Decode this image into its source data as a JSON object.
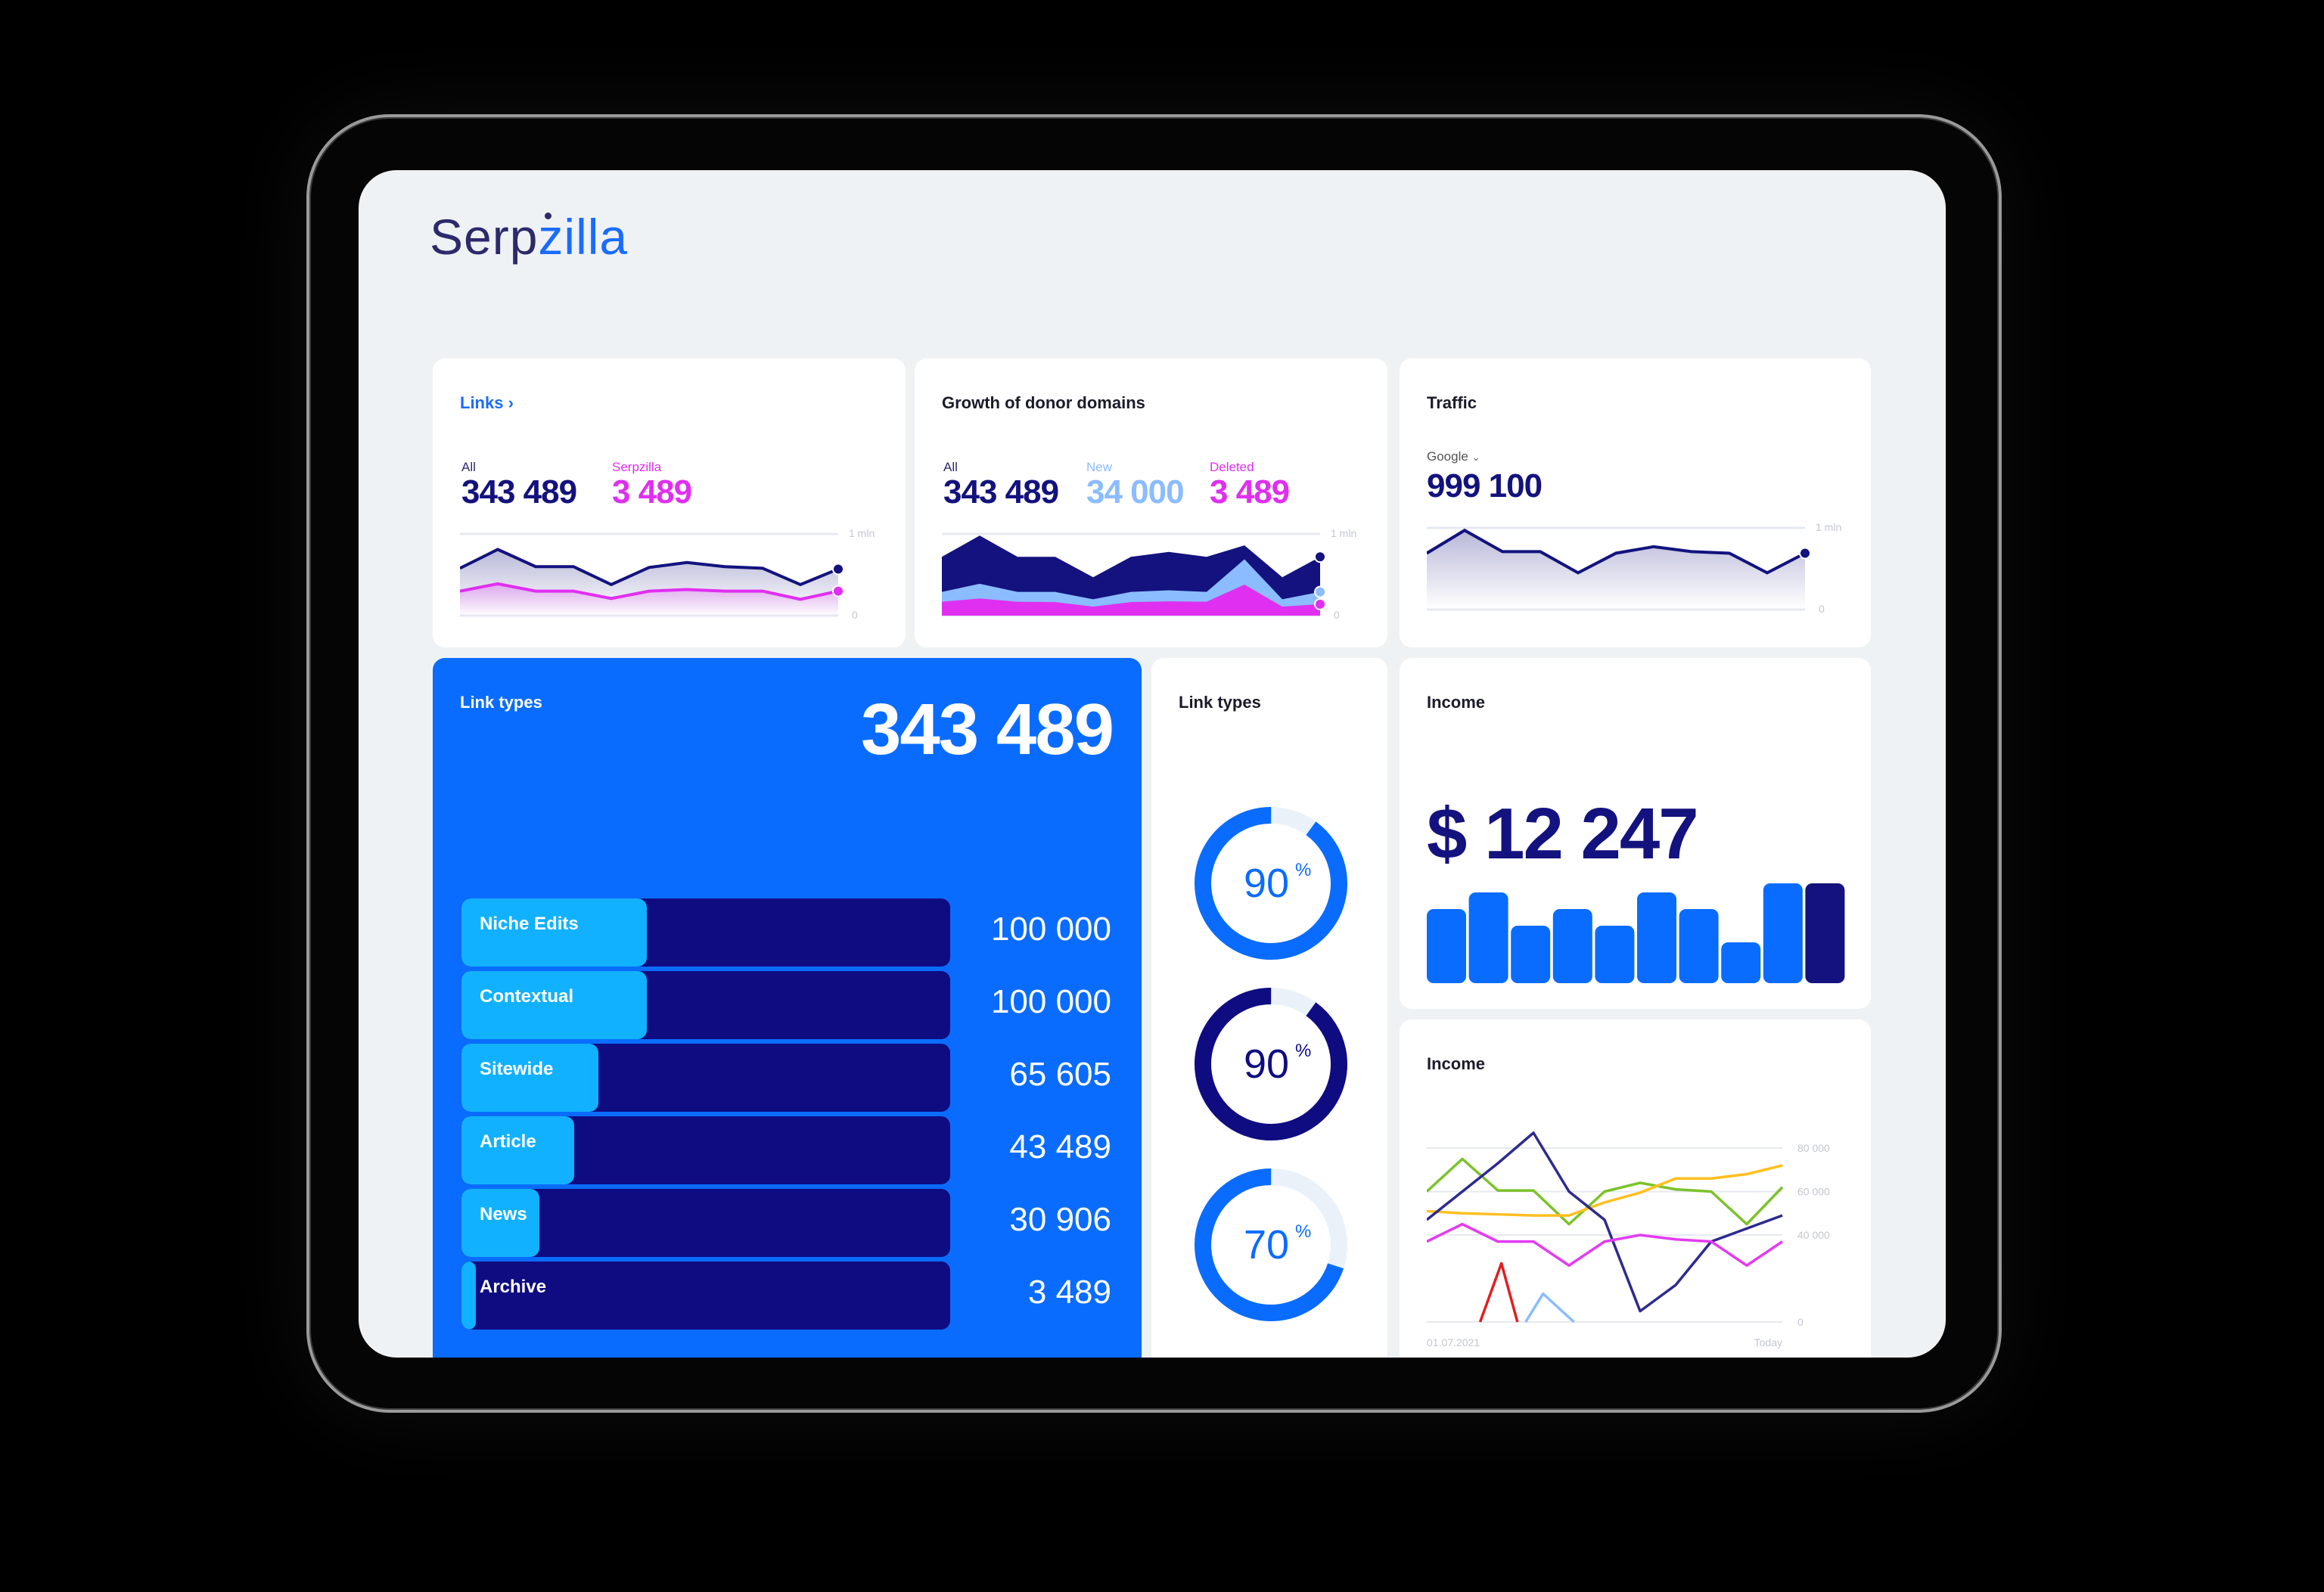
{
  "brand": {
    "name_part1": "Serp",
    "name_part2": "zilla"
  },
  "colors": {
    "navy": "#13127e",
    "blue": "#0a6cff",
    "light_blue": "#8bbcff",
    "magenta": "#e02ff0",
    "cyan": "#12b1ff",
    "track": "#eaf1f9",
    "bg": "#eff2f4"
  },
  "links_card": {
    "title": "Links",
    "title_icon": "chevron-right-icon",
    "all_label": "All",
    "all_value": "343 489",
    "serpzilla_label": "Serpzilla",
    "serpzilla_value": "3 489",
    "axis_top": "1 mln",
    "axis_bottom": "0",
    "chart_data": {
      "type": "area",
      "ylim": [
        0,
        1000000
      ],
      "series": [
        {
          "name": "All",
          "values": [
            580000,
            810000,
            600000,
            600000,
            380000,
            590000,
            650000,
            600000,
            580000,
            380000,
            570000
          ]
        },
        {
          "name": "Serpzilla",
          "values": [
            300000,
            390000,
            300000,
            300000,
            210000,
            300000,
            320000,
            300000,
            300000,
            200000,
            300000
          ]
        }
      ]
    }
  },
  "donor_card": {
    "title": "Growth of donor domains",
    "all_label": "All",
    "all_value": "343 489",
    "new_label": "New",
    "new_value": "34 000",
    "deleted_label": "Deleted",
    "deleted_value": "3 489",
    "axis_top": "1 mln",
    "axis_bottom": "0",
    "chart_data": {
      "type": "area",
      "stacked_display": true,
      "ylim": [
        0,
        1000000
      ],
      "series": [
        {
          "name": "All",
          "values": [
            720000,
            980000,
            720000,
            720000,
            470000,
            720000,
            780000,
            720000,
            860000,
            470000,
            720000
          ]
        },
        {
          "name": "New",
          "values": [
            290000,
            390000,
            290000,
            290000,
            200000,
            290000,
            310000,
            290000,
            690000,
            200000,
            290000
          ]
        },
        {
          "name": "Deleted",
          "values": [
            170000,
            210000,
            170000,
            165000,
            110000,
            165000,
            175000,
            170000,
            380000,
            110000,
            140000
          ]
        }
      ]
    }
  },
  "traffic_card": {
    "title": "Traffic",
    "source_select": "Google",
    "source_icon": "chevron-down-icon",
    "value": "999 100",
    "axis_top": "1 mln",
    "axis_bottom": "0",
    "chart_data": {
      "type": "area",
      "ylim": [
        0,
        1000000
      ],
      "series": [
        {
          "name": "Google",
          "values": [
            690000,
            970000,
            710000,
            710000,
            450000,
            690000,
            770000,
            710000,
            690000,
            450000,
            690000
          ]
        }
      ]
    }
  },
  "link_types_card": {
    "title": "Link types",
    "total": "343 489",
    "items": [
      {
        "label": "Niche Edits",
        "value": "100 000",
        "fill_percent": 38
      },
      {
        "label": "Contextual",
        "value": "100 000",
        "fill_percent": 38
      },
      {
        "label": "Sitewide",
        "value": "65 605",
        "fill_percent": 28
      },
      {
        "label": "Article",
        "value": "43 489",
        "fill_percent": 23
      },
      {
        "label": "News",
        "value": "30 906",
        "fill_percent": 16
      },
      {
        "label": "Archive",
        "value": "3 489",
        "fill_percent": 3
      }
    ]
  },
  "donuts_card": {
    "title": "Link types",
    "donuts": [
      {
        "value": "90",
        "unit": "%",
        "percent": 90,
        "color": "#0a6cff"
      },
      {
        "value": "90",
        "unit": "%",
        "percent": 90,
        "color": "#0f0c82"
      },
      {
        "value": "70",
        "unit": "%",
        "percent": 70,
        "color": "#0a6cff"
      }
    ]
  },
  "income_card": {
    "title": "Income",
    "value": "$ 12 247",
    "chart_data": {
      "type": "bar",
      "values": [
        49,
        60,
        38,
        49,
        38,
        60,
        49,
        27,
        66,
        66
      ],
      "highlight_last": true
    }
  },
  "income_lines_card": {
    "title": "Income",
    "chart_data": {
      "type": "line",
      "ylim": [
        0,
        80000
      ],
      "yticks": [
        "0",
        "40 000",
        "60 000",
        "80 000"
      ],
      "ytick_values": [
        0,
        40000,
        60000,
        80000
      ],
      "x_start_label": "01.07.2021",
      "x_end_label": "Today",
      "series": [
        {
          "color": "#7cc22a",
          "x": [
            0,
            1,
            2,
            3,
            4,
            5,
            6,
            7,
            8,
            9,
            10
          ],
          "values": [
            60000,
            75000,
            60500,
            60500,
            45000,
            60000,
            64000,
            61000,
            60000,
            45000,
            62000
          ]
        },
        {
          "color": "#ffbf1f",
          "x": [
            0,
            1,
            2,
            3,
            4,
            5,
            6,
            7,
            8,
            9,
            10
          ],
          "values": [
            51000,
            50000,
            49500,
            49000,
            49000,
            55000,
            59500,
            66000,
            66000,
            68000,
            72000
          ]
        },
        {
          "color": "#2d2b8f",
          "x": [
            0,
            1,
            2,
            3,
            4,
            5,
            6,
            7,
            8,
            9,
            10
          ],
          "values": [
            47000,
            60000,
            73000,
            87000,
            60000,
            47000,
            5000,
            17000,
            37000,
            43000,
            49000
          ]
        },
        {
          "color": "#e33bf2",
          "x": [
            0,
            1,
            2,
            3,
            4,
            5,
            6,
            7,
            8,
            9,
            10
          ],
          "values": [
            37000,
            45000,
            37000,
            37000,
            26000,
            37000,
            40000,
            38000,
            37000,
            26000,
            37000
          ]
        },
        {
          "color": "#e02020",
          "x": [
            1.5,
            2.1,
            2.55
          ],
          "values": [
            0,
            27000,
            0
          ]
        },
        {
          "color": "#8bbcff",
          "x": [
            2.78,
            3.27,
            4.14
          ],
          "values": [
            0,
            13000,
            0
          ]
        }
      ]
    }
  }
}
